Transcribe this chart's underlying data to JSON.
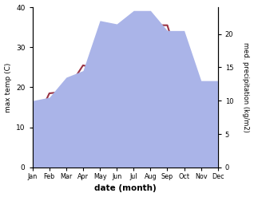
{
  "months": [
    "Jan",
    "Feb",
    "Mar",
    "Apr",
    "May",
    "Jun",
    "Jul",
    "Aug",
    "Sep",
    "Oct",
    "Nov",
    "Dec"
  ],
  "temp": [
    9.5,
    18.5,
    19.0,
    25.5,
    24.5,
    30.5,
    28.5,
    35.5,
    35.5,
    22.0,
    14.0,
    11.5
  ],
  "precip": [
    10.0,
    10.5,
    13.5,
    14.5,
    22.0,
    21.5,
    23.5,
    23.5,
    20.5,
    20.5,
    13.0,
    13.0
  ],
  "temp_color": "#993344",
  "precip_color": "#aab4e8",
  "title": "",
  "ylabel_left": "max temp (C)",
  "ylabel_right": "med. precipitation (kg/m2)",
  "xlabel": "date (month)",
  "ylim_left": [
    0,
    40
  ],
  "ylim_right": [
    0,
    24
  ],
  "yticks_left": [
    0,
    10,
    20,
    30,
    40
  ],
  "yticks_right": [
    0,
    5,
    10,
    15,
    20
  ],
  "bg_color": "#ffffff",
  "line_width": 1.5
}
